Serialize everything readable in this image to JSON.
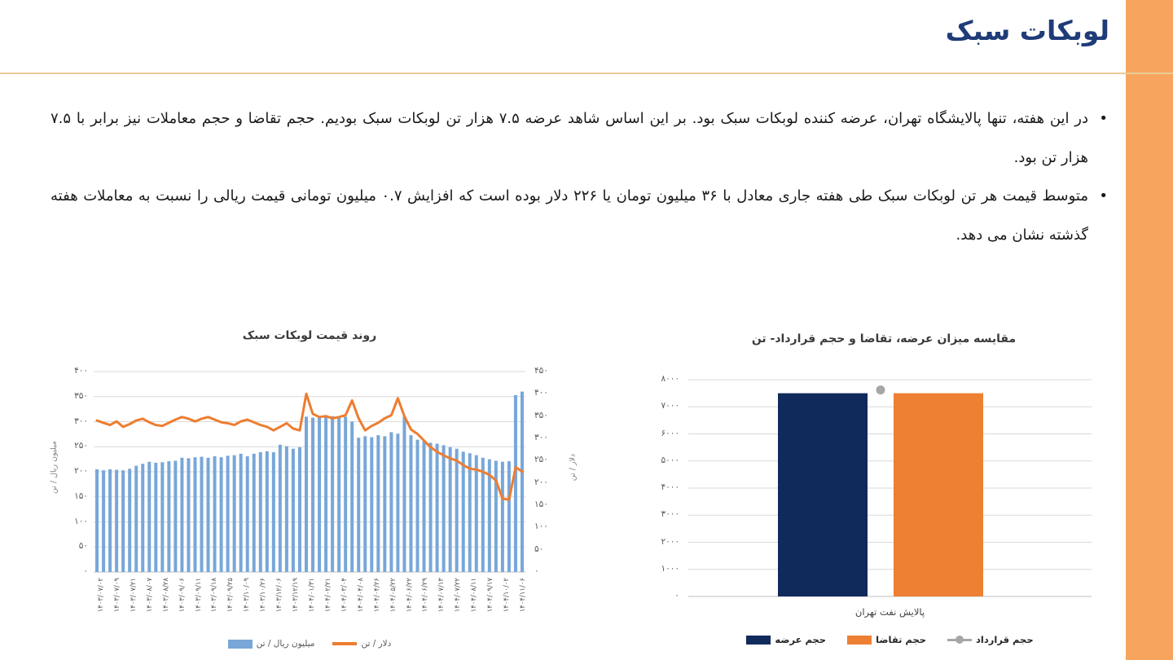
{
  "page": {
    "accent_bar_color": "#F7A55E",
    "header_rule_color": "#E9CB96",
    "title_color": "#1F3C78"
  },
  "header": {
    "title": "لوبکات سبک"
  },
  "bullets": [
    {
      "marker": "•",
      "text": "در این هفته، تنها پالایشگاه تهران، عرضه کننده لوبکات سبک بود. بر این اساس شاهد عرضه ۷.۵ هزار تن لوبکات سبک بودیم. حجم تقاضا و حجم معاملات نیز برابر با ۷.۵ هزار تن بود."
    },
    {
      "marker": "•",
      "text": "متوسط قیمت هر تن لوبکات سبک طی هفته جاری معادل با ۳۶ میلیون تومان یا ۲۲۶ دلار بوده است که افزایش ۰.۷ میلیون تومانی قیمت ریالی را نسبت به معاملات هفته گذشته نشان می دهد."
    }
  ],
  "chart_data": [
    {
      "id": "price_trend",
      "type": "bar+line",
      "title": "روند قیمت لوبکات سبک",
      "y_left": {
        "label": "میلیون ریال / تن",
        "min": 0,
        "max": 400,
        "step": 50,
        "tick_labels": [
          "۴۰۰",
          "۳۵۰",
          "۳۰۰",
          "۲۵۰",
          "۲۰۰",
          "۱۵۰",
          "۱۰۰",
          "۵۰",
          "۰"
        ]
      },
      "y_right": {
        "label": "دلار / تن",
        "min": 0,
        "max": 450,
        "step": 50,
        "tick_labels": [
          "۴۵۰",
          "۴۰۰",
          "۳۵۰",
          "۳۰۰",
          "۲۵۰",
          "۲۰۰",
          "۱۵۰",
          "۱۰۰",
          "۵۰",
          "۰"
        ]
      },
      "x_tick_labels": [
        "۱۴۰۳/۰۷/۰۲",
        "۱۴۰۳/۰۷/۰۹",
        "۱۴۰۳/۰۷/۲۱",
        "۱۴۰۳/۰۸/۰۷",
        "۱۴۰۳/۰۸/۲۸",
        "۱۴۰۳/۰۹/۰۶",
        "۱۴۰۳/۰۹/۱۱",
        "۱۴۰۳/۰۹/۱۸",
        "۱۴۰۳/۰۹/۲۵",
        "۱۴۰۳/۱۰/۰۹",
        "۱۴۰۳/۱۰/۲۶",
        "۱۴۰۳/۱۲/۰۶",
        "۱۴۰۳/۱۲/۱۹",
        "۱۴۰۴/۰۱/۳۱",
        "۱۴۰۴/۰۲/۲۱",
        "۱۴۰۴/۰۳/۰۴",
        "۱۴۰۴/۰۴/۰۸",
        "۱۴۰۴/۰۴/۲۶",
        "۱۴۰۴/۰۵/۲۲",
        "۱۴۰۴/۰۶/۲۲",
        "۱۴۰۴/۰۶/۲۹",
        "۱۴۰۴/۰۷/۱۳",
        "۱۴۰۴/۰۷/۲۲",
        "۱۴۰۴/۰۸/۱۱",
        "۱۴۰۴/۰۹/۱۷",
        "۱۴۰۴/۱۰/۰۲",
        "۱۴۰۴/۱۱/۰۶"
      ],
      "series": [
        {
          "name": "میلیون ریال / تن",
          "type": "bar",
          "axis": "left",
          "color": "#78A7D8",
          "values": [
            205,
            203,
            205,
            204,
            203,
            206,
            212,
            216,
            220,
            218,
            219,
            221,
            222,
            228,
            227,
            229,
            230,
            228,
            231,
            229,
            232,
            233,
            236,
            231,
            236,
            239,
            241,
            239,
            254,
            251,
            246,
            249,
            310,
            308,
            310,
            309,
            311,
            308,
            310,
            300,
            268,
            271,
            269,
            273,
            271,
            279,
            276,
            310,
            273,
            264,
            261,
            258,
            256,
            253,
            249,
            246,
            240,
            237,
            233,
            228,
            225,
            222,
            220,
            221,
            353,
            360
          ]
        },
        {
          "name": "دلار / تن",
          "type": "line",
          "axis": "right",
          "color": "#ED7D31",
          "values": [
            340,
            335,
            330,
            338,
            326,
            332,
            340,
            344,
            336,
            330,
            328,
            335,
            342,
            348,
            344,
            338,
            344,
            348,
            342,
            336,
            334,
            330,
            338,
            342,
            336,
            330,
            326,
            318,
            326,
            334,
            322,
            318,
            400,
            355,
            348,
            350,
            345,
            348,
            352,
            385,
            345,
            318,
            328,
            335,
            345,
            352,
            390,
            350,
            320,
            310,
            295,
            280,
            270,
            262,
            255,
            250,
            240,
            232,
            230,
            225,
            218,
            205,
            165,
            162,
            235,
            226
          ]
        }
      ],
      "grid": true,
      "legend_position": "bottom"
    },
    {
      "id": "supply_demand",
      "type": "bar",
      "title": "مقایسه میزان عرضه، تقاضا و حجم قرارداد- تن",
      "categories": [
        "پالایش نفت تهران"
      ],
      "ylim": [
        0,
        8000
      ],
      "y_tick_labels": [
        "۸۰۰۰",
        "۷۰۰۰",
        "۶۰۰۰",
        "۵۰۰۰",
        "۴۰۰۰",
        "۳۰۰۰",
        "۲۰۰۰",
        "۱۰۰۰",
        "۰"
      ],
      "series": [
        {
          "name": "حجم عرضه",
          "type": "bar",
          "color": "#102A5C",
          "values": [
            7500
          ]
        },
        {
          "name": "حجم تقاضا",
          "type": "bar",
          "color": "#ED8032",
          "values": [
            7500
          ]
        },
        {
          "name": "حجم قرارداد",
          "type": "point",
          "color": "#A6A6A6",
          "values": [
            7500
          ]
        }
      ],
      "grid": true,
      "legend_position": "bottom"
    }
  ]
}
